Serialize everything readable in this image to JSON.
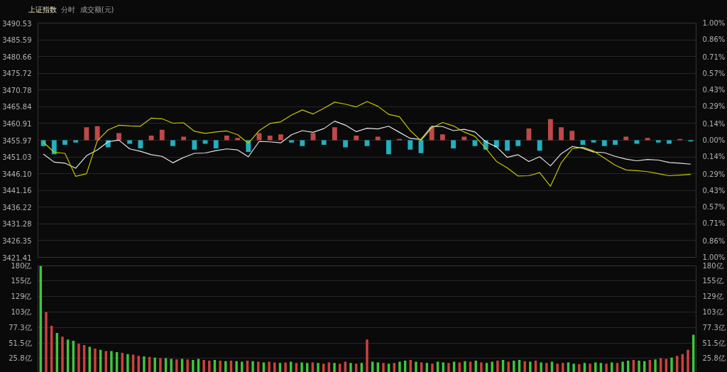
{
  "chart_data": [
    {
      "type": "line",
      "title": "上证指数",
      "annotations": [
        "分时",
        "成交额(元)"
      ],
      "categories": [
        null,
        null,
        null,
        null,
        null,
        null,
        null,
        null,
        null,
        null,
        null,
        null,
        null,
        null,
        null,
        null,
        null,
        null,
        null,
        null,
        null,
        null,
        null,
        null,
        null,
        null,
        null,
        null,
        null,
        null,
        null,
        null,
        null,
        null,
        null,
        null,
        null,
        null,
        null,
        null,
        null,
        null,
        null,
        null,
        null,
        null,
        null,
        null,
        null,
        null,
        null,
        null,
        null,
        null,
        null,
        null,
        null,
        null,
        null,
        null,
        null
      ],
      "ylim": [
        3421.41,
        3490.53
      ],
      "yticks": [
        {
          "value": 3490.53,
          "label": "3490.53"
        },
        {
          "value": 3485.59,
          "label": "3485.59"
        },
        {
          "value": 3480.66,
          "label": "3480.66"
        },
        {
          "value": 3475.72,
          "label": "3475.72"
        },
        {
          "value": 3470.78,
          "label": "3470.78"
        },
        {
          "value": 3465.84,
          "label": "3465.84"
        },
        {
          "value": 3460.91,
          "label": "3460.91"
        },
        {
          "value": 3455.97,
          "label": "3455.97"
        },
        {
          "value": 3451.03,
          "label": "3451.03"
        },
        {
          "value": 3446.1,
          "label": "3446.10"
        },
        {
          "value": 3441.16,
          "label": "3441.16"
        },
        {
          "value": 3436.22,
          "label": "3436.22"
        },
        {
          "value": 3431.28,
          "label": "3431.28"
        },
        {
          "value": 3426.35,
          "label": "3426.35"
        },
        {
          "value": 3421.41,
          "label": "3421.41"
        }
      ],
      "y2lim": [
        -1,
        1
      ],
      "y2ticks": [
        {
          "value": 1,
          "label": "1.00%"
        },
        {
          "value": 0.86,
          "label": "0.86%"
        },
        {
          "value": 0.71,
          "label": "0.71%"
        },
        {
          "value": 0.57,
          "label": "0.57%"
        },
        {
          "value": 0.43,
          "label": "0.43%"
        },
        {
          "value": 0.29,
          "label": "0.29%"
        },
        {
          "value": 0.14,
          "label": "0.14%"
        },
        {
          "value": 0,
          "label": "0.00%"
        },
        {
          "value": -0.14,
          "label": "0.14%"
        },
        {
          "value": -0.29,
          "label": "0.29%"
        },
        {
          "value": -0.43,
          "label": "0.43%"
        },
        {
          "value": -0.57,
          "label": "0.57%"
        },
        {
          "value": -0.71,
          "label": "0.71%"
        },
        {
          "value": -0.86,
          "label": "0.86%"
        },
        {
          "value": -1,
          "label": "1.00%"
        }
      ],
      "grid": "y",
      "series": [
        {
          "type": "bar",
          "axis": "y2",
          "values": [
            -0.05,
            -0.12,
            -0.04,
            -0.02,
            0.11,
            0.12,
            -0.06,
            0.06,
            -0.03,
            -0.07,
            0.04,
            0.09,
            -0.05,
            0.03,
            -0.08,
            -0.03,
            -0.07,
            0.04,
            0.02,
            -0.1,
            0.06,
            0.04,
            0.05,
            -0.02,
            -0.05,
            0.06,
            -0.04,
            0.11,
            -0.06,
            0.04,
            -0.05,
            0.03,
            -0.12,
            0.01,
            -0.08,
            -0.11,
            0.11,
            0.05,
            -0.07,
            0.03,
            -0.05,
            -0.08,
            -0.06,
            -0.09,
            -0.05,
            0.1,
            -0.09,
            0.18,
            0.11,
            0.08,
            -0.04,
            -0.02,
            -0.05,
            -0.04,
            0.03,
            -0.03,
            0.02,
            -0.02,
            -0.03,
            0.01,
            -0.01
          ],
          "colors": [
            "#20b0c0",
            "#20b0c0",
            "#20b0c0",
            "#20b0c0",
            "#c04848",
            "#c04848",
            "#20b0c0",
            "#c04848",
            "#20b0c0",
            "#20b0c0",
            "#c04848",
            "#c04848",
            "#20b0c0",
            "#c04848",
            "#20b0c0",
            "#20b0c0",
            "#20b0c0",
            "#c04848",
            "#c04848",
            "#20b0c0",
            "#c04848",
            "#c04848",
            "#c04848",
            "#20b0c0",
            "#20b0c0",
            "#c04848",
            "#20b0c0",
            "#c04848",
            "#20b0c0",
            "#c04848",
            "#20b0c0",
            "#c04848",
            "#20b0c0",
            "#c04848",
            "#20b0c0",
            "#20b0c0",
            "#c04848",
            "#c04848",
            "#20b0c0",
            "#c04848",
            "#20b0c0",
            "#20b0c0",
            "#20b0c0",
            "#20b0c0",
            "#20b0c0",
            "#c04848",
            "#20b0c0",
            "#c04848",
            "#c04848",
            "#c04848",
            "#20b0c0",
            "#20b0c0",
            "#20b0c0",
            "#20b0c0",
            "#c04848",
            "#20b0c0",
            "#c04848",
            "#20b0c0",
            "#20b0c0",
            "#c04848",
            "#20b0c0"
          ]
        },
        {
          "color": "#e6e6e6",
          "values": [
            3451.9,
            3449.5,
            3449.2,
            3447.7,
            3451.4,
            3453.1,
            3455.5,
            3456.0,
            3453.4,
            3452.7,
            3451.7,
            3451.2,
            3449.3,
            3450.9,
            3452.1,
            3452.2,
            3452.9,
            3453.4,
            3453.1,
            3451.1,
            3455.6,
            3455.5,
            3455.2,
            3457.6,
            3458.8,
            3458.3,
            3459.4,
            3461.6,
            3460.4,
            3458.5,
            3459.5,
            3459.3,
            3460.1,
            3458.3,
            3456.5,
            3456.2,
            3460.1,
            3460.0,
            3458.8,
            3459.2,
            3458.4,
            3455.5,
            3454.0,
            3450.9,
            3451.7,
            3449.7,
            3451.1,
            3448.4,
            3452.0,
            3454.1,
            3453.6,
            3452.5,
            3452.3,
            3451.2,
            3450.4,
            3449.9,
            3450.3,
            3450.1,
            3449.4,
            3449.2,
            3448.9
          ]
        },
        {
          "color": "#c8c400",
          "values": [
            3455.4,
            3452.4,
            3452.1,
            3445.3,
            3446.1,
            3455.8,
            3459.0,
            3460.4,
            3460.2,
            3460.1,
            3462.5,
            3462.3,
            3461.0,
            3461.1,
            3458.6,
            3458.0,
            3458.4,
            3458.7,
            3457.6,
            3455.1,
            3458.8,
            3460.9,
            3461.4,
            3463.4,
            3464.9,
            3463.7,
            3465.4,
            3467.2,
            3466.6,
            3465.8,
            3467.4,
            3466.0,
            3463.6,
            3462.9,
            3458.8,
            3455.9,
            3459.6,
            3461.2,
            3460.2,
            3458.4,
            3457.1,
            3453.6,
            3449.7,
            3447.8,
            3445.4,
            3445.5,
            3446.4,
            3442.4,
            3449.3,
            3453.4,
            3453.9,
            3452.8,
            3450.7,
            3448.6,
            3447.2,
            3447.0,
            3446.7,
            3446.1,
            3445.5,
            3445.7,
            3445.9
          ]
        }
      ]
    },
    {
      "type": "bar",
      "categories": [
        null,
        null,
        null,
        null,
        null,
        null,
        null,
        null,
        null,
        null,
        null,
        null,
        null,
        null,
        null,
        null,
        null,
        null,
        null,
        null,
        null,
        null,
        null,
        null,
        null,
        null,
        null,
        null,
        null,
        null,
        null,
        null,
        null,
        null,
        null,
        null,
        null,
        null,
        null,
        null,
        null,
        null,
        null,
        null,
        null,
        null,
        null,
        null,
        null,
        null,
        null,
        null,
        null,
        null,
        null,
        null,
        null,
        null,
        null,
        null,
        null,
        null,
        null,
        null,
        null,
        null,
        null,
        null,
        null,
        null,
        null,
        null,
        null,
        null,
        null,
        null,
        null,
        null,
        null,
        null,
        null,
        null,
        null,
        null,
        null,
        null,
        null,
        null,
        null,
        null,
        null,
        null,
        null,
        null,
        null,
        null,
        null,
        null,
        null,
        null,
        null,
        null,
        null,
        null,
        null,
        null,
        null,
        null,
        null,
        null,
        null,
        null,
        null,
        null,
        null,
        null,
        null,
        null,
        null,
        null,
        null
      ],
      "ylim": [
        0,
        180
      ],
      "yticks": [
        {
          "value": 25.8,
          "label": "25.8亿"
        },
        {
          "value": 51.5,
          "label": "51.5亿"
        },
        {
          "value": 77.3,
          "label": "77.3亿"
        },
        {
          "value": 103,
          "label": "103亿"
        },
        {
          "value": 129,
          "label": "129亿"
        },
        {
          "value": 155,
          "label": "155亿"
        },
        {
          "value": 180,
          "label": "180亿"
        }
      ],
      "y2lim": [
        0,
        180
      ],
      "y2ticks": [
        {
          "value": 25.8,
          "label": "25.8亿"
        },
        {
          "value": 51.5,
          "label": "51.5亿"
        },
        {
          "value": 77.3,
          "label": "77.3亿"
        },
        {
          "value": 103,
          "label": "103亿"
        },
        {
          "value": 129,
          "label": "129亿"
        },
        {
          "value": 155,
          "label": "155亿"
        },
        {
          "value": 180,
          "label": "180亿"
        }
      ],
      "grid": "y",
      "values": [
        180,
        103,
        80,
        68,
        62,
        57,
        55,
        50,
        48,
        45,
        42,
        40,
        38,
        38,
        36,
        35,
        33,
        32,
        30,
        29,
        28,
        27,
        26,
        26,
        25,
        24,
        25,
        24,
        23,
        25,
        23,
        22,
        23,
        22,
        21,
        22,
        21,
        20,
        22,
        21,
        20,
        19,
        20,
        19,
        18,
        19,
        20,
        18,
        19,
        18,
        19,
        18,
        17,
        19,
        18,
        17,
        20,
        18,
        17,
        18,
        57,
        20,
        19,
        18,
        17,
        18,
        20,
        22,
        23,
        20,
        19,
        18,
        17,
        20,
        19,
        18,
        20,
        19,
        21,
        20,
        22,
        19,
        18,
        20,
        22,
        23,
        20,
        22,
        23,
        21,
        20,
        22,
        19,
        18,
        20,
        17,
        18,
        19,
        17,
        16,
        18,
        17,
        19,
        18,
        17,
        19,
        18,
        20,
        22,
        23,
        22,
        21,
        23,
        24,
        26,
        25,
        27,
        30,
        33,
        40,
        65
      ],
      "colors": [
        "#3cc83c",
        "#d04040",
        "#d04040",
        "#3cc83c",
        "#d04040",
        "#3cc83c",
        "#3cc83c",
        "#d04040",
        "#d04040",
        "#3cc83c",
        "#d04040",
        "#3cc83c",
        "#d04040",
        "#3cc83c",
        "#3cc83c",
        "#d04040",
        "#3cc83c",
        "#d04040",
        "#d04040",
        "#3cc83c",
        "#d04040",
        "#3cc83c",
        "#d04040",
        "#3cc83c",
        "#3cc83c",
        "#d04040",
        "#3cc83c",
        "#d04040",
        "#3cc83c",
        "#3cc83c",
        "#d04040",
        "#d04040",
        "#3cc83c",
        "#d04040",
        "#3cc83c",
        "#d04040",
        "#3cc83c",
        "#3cc83c",
        "#d04040",
        "#3cc83c",
        "#d04040",
        "#3cc83c",
        "#d04040",
        "#d04040",
        "#3cc83c",
        "#d04040",
        "#3cc83c",
        "#d04040",
        "#3cc83c",
        "#3cc83c",
        "#d04040",
        "#3cc83c",
        "#d04040",
        "#d04040",
        "#3cc83c",
        "#d04040",
        "#d04040",
        "#3cc83c",
        "#d04040",
        "#3cc83c",
        "#d04040",
        "#3cc83c",
        "#3cc83c",
        "#d04040",
        "#3cc83c",
        "#d04040",
        "#3cc83c",
        "#3cc83c",
        "#d04040",
        "#3cc83c",
        "#d04040",
        "#3cc83c",
        "#d04040",
        "#3cc83c",
        "#3cc83c",
        "#d04040",
        "#3cc83c",
        "#d04040",
        "#3cc83c",
        "#d04040",
        "#3cc83c",
        "#d04040",
        "#3cc83c",
        "#3cc83c",
        "#d04040",
        "#3cc83c",
        "#d04040",
        "#3cc83c",
        "#3cc83c",
        "#d04040",
        "#3cc83c",
        "#d04040",
        "#3cc83c",
        "#d04040",
        "#3cc83c",
        "#d04040",
        "#d04040",
        "#3cc83c",
        "#3cc83c",
        "#d04040",
        "#3cc83c",
        "#d04040",
        "#3cc83c",
        "#3cc83c",
        "#d04040",
        "#3cc83c",
        "#d04040",
        "#3cc83c",
        "#3cc83c",
        "#d04040",
        "#3cc83c",
        "#3cc83c",
        "#d04040",
        "#3cc83c",
        "#d04040",
        "#d04040",
        "#3cc83c",
        "#d04040",
        "#d04040",
        "#d04040",
        "#3cc83c"
      ]
    }
  ]
}
